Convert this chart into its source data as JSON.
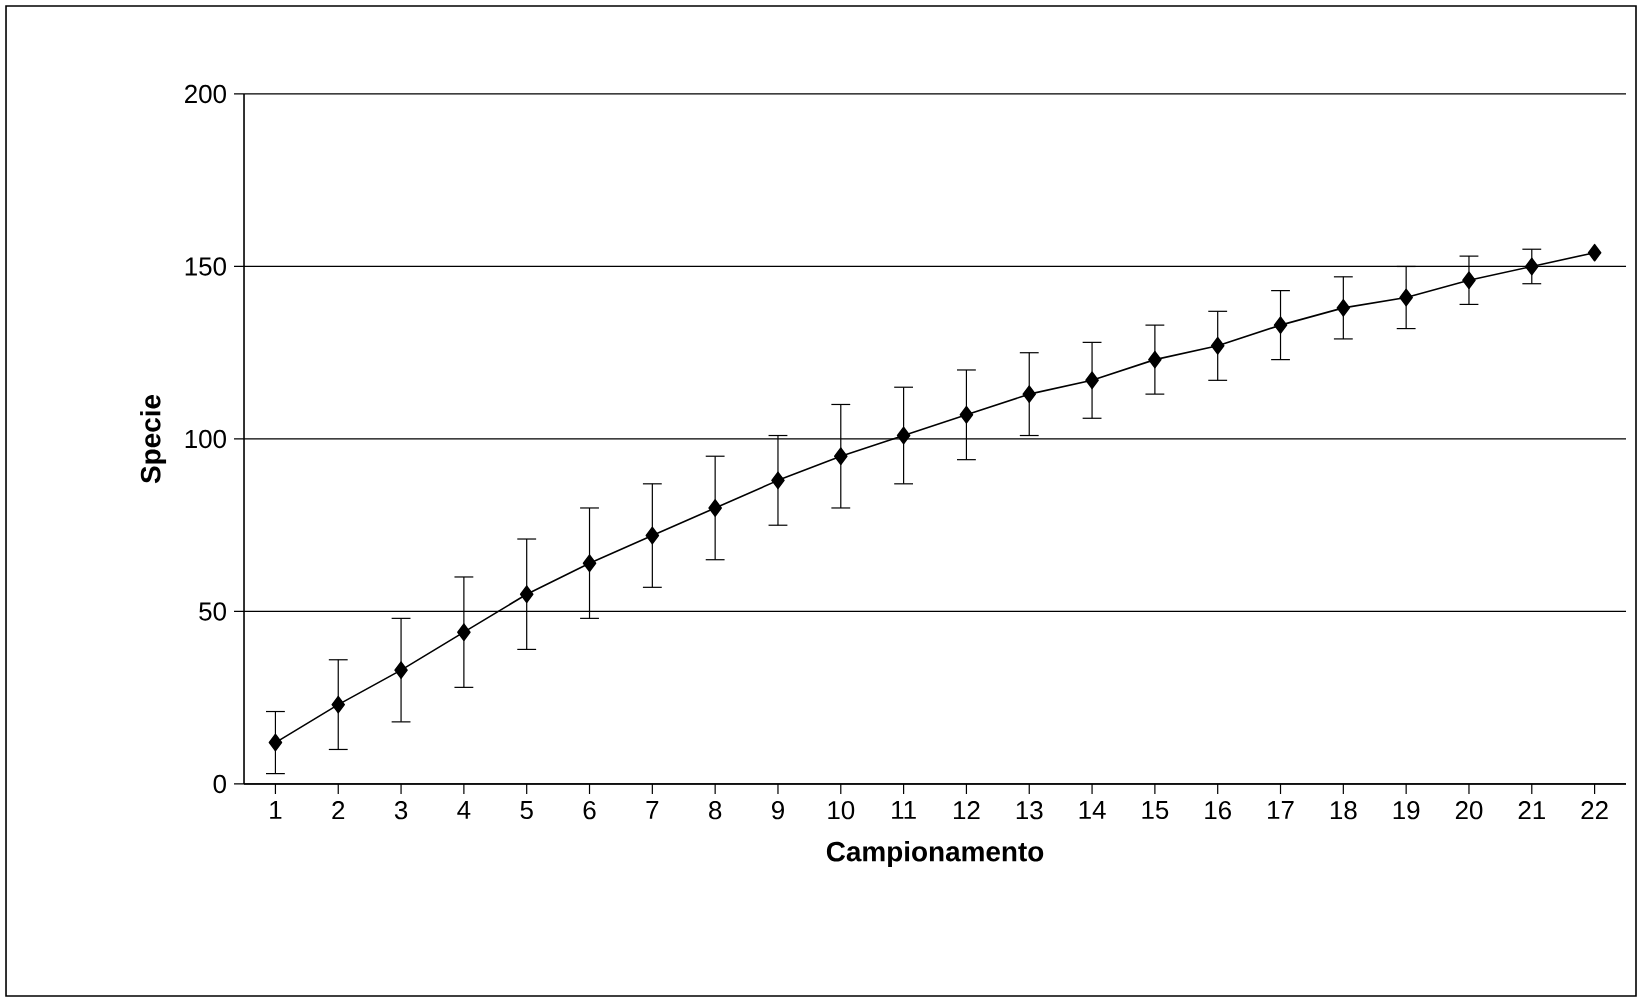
{
  "chart_data": {
    "type": "line",
    "xlabel": "Campionamento",
    "ylabel": "Specie",
    "categories": [
      "1",
      "2",
      "3",
      "4",
      "5",
      "6",
      "7",
      "8",
      "9",
      "10",
      "11",
      "12",
      "13",
      "14",
      "15",
      "16",
      "17",
      "18",
      "19",
      "20",
      "21",
      "22"
    ],
    "values": [
      12,
      23,
      33,
      44,
      55,
      64,
      72,
      80,
      88,
      95,
      101,
      107,
      113,
      117,
      123,
      127,
      133,
      138,
      141,
      146,
      150,
      154
    ],
    "errors": [
      9,
      13,
      15,
      16,
      16,
      16,
      15,
      15,
      13,
      15,
      14,
      13,
      12,
      11,
      10,
      10,
      10,
      9,
      9,
      7,
      5,
      null
    ],
    "color": "#000000",
    "marker": "diamond",
    "line_style": "solid",
    "ylim": [
      0,
      200
    ],
    "yticks": [
      0,
      50,
      100,
      150,
      200
    ],
    "grid": "y"
  }
}
